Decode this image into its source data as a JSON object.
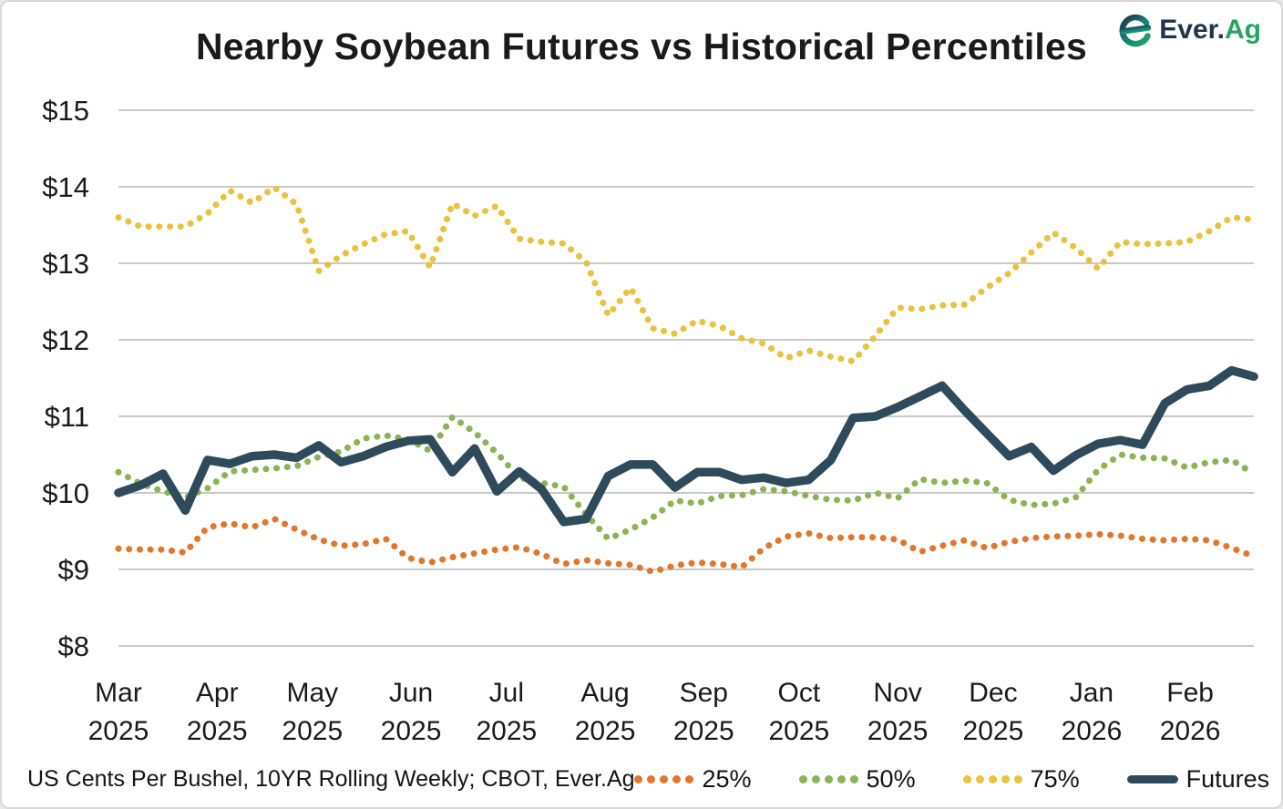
{
  "header": {
    "logo": {
      "ever": "Ever.",
      "ag": "Ag"
    }
  },
  "footer": {
    "note": "US Cents Per Bushel, 10YR Rolling Weekly; CBOT, Ever.Ag"
  },
  "colors": {
    "grid": "#c9c9c9",
    "axis_text": "#1a1a1a",
    "p25_orange": "#e2772c",
    "p50_green": "#8cb356",
    "p75_yellow": "#e9c23f",
    "futures_navy": "#2e4a5b",
    "logo_navy": "#22344a",
    "logo_green": "#27a45c",
    "logo_teal": "#12867b"
  },
  "chart_data": {
    "type": "line",
    "title": "Nearby Soybean Futures vs Historical Percentiles",
    "xlabel": "",
    "ylabel": "US Cents Per Bushel",
    "ylim": [
      8,
      15
    ],
    "grid": "horizontal",
    "legend_position": "bottom-right",
    "x_unit": "weekly (Mar 2025 - Feb 2026), 52 points per series",
    "y_ticks": [
      {
        "label": "$15",
        "value": 15
      },
      {
        "label": "$14",
        "value": 14
      },
      {
        "label": "$13",
        "value": 13
      },
      {
        "label": "$12",
        "value": 12
      },
      {
        "label": "$11",
        "value": 11
      },
      {
        "label": "$10",
        "value": 10
      },
      {
        "label": "$9",
        "value": 9
      },
      {
        "label": "$8",
        "value": 8
      }
    ],
    "x_labels": [
      {
        "month": "Mar",
        "year": "2025",
        "week": 0
      },
      {
        "month": "Apr",
        "year": "2025",
        "week": 4.43
      },
      {
        "month": "May",
        "year": "2025",
        "week": 8.71
      },
      {
        "month": "Jun",
        "year": "2025",
        "week": 13.14
      },
      {
        "month": "Jul",
        "year": "2025",
        "week": 17.43
      },
      {
        "month": "Aug",
        "year": "2025",
        "week": 21.86
      },
      {
        "month": "Sep",
        "year": "2025",
        "week": 26.29
      },
      {
        "month": "Oct",
        "year": "2025",
        "week": 30.57
      },
      {
        "month": "Nov",
        "year": "2025",
        "week": 35.0
      },
      {
        "month": "Dec",
        "year": "2025",
        "week": 39.29
      },
      {
        "month": "Jan",
        "year": "2026",
        "week": 43.71
      },
      {
        "month": "Feb",
        "year": "2026",
        "week": 48.14
      }
    ],
    "series": [
      {
        "name": "25%",
        "style": "dotted",
        "color": "#e2772c",
        "values": [
          9.27,
          9.26,
          9.26,
          9.22,
          9.55,
          9.6,
          9.55,
          9.66,
          9.52,
          9.39,
          9.31,
          9.33,
          9.4,
          9.15,
          9.09,
          9.16,
          9.21,
          9.26,
          9.29,
          9.2,
          9.07,
          9.12,
          9.08,
          9.06,
          8.97,
          9.05,
          9.09,
          9.07,
          9.03,
          9.28,
          9.43,
          9.47,
          9.41,
          9.42,
          9.42,
          9.39,
          9.23,
          9.31,
          9.38,
          9.28,
          9.36,
          9.41,
          9.43,
          9.44,
          9.46,
          9.44,
          9.4,
          9.38,
          9.4,
          9.38,
          9.28,
          9.17
        ]
      },
      {
        "name": "50%",
        "style": "dotted",
        "color": "#8cb356",
        "values": [
          10.27,
          10.12,
          10.02,
          9.94,
          10.06,
          10.28,
          10.3,
          10.32,
          10.35,
          10.47,
          10.54,
          10.71,
          10.75,
          10.7,
          10.55,
          10.99,
          10.79,
          10.52,
          10.2,
          10.13,
          10.08,
          9.72,
          9.4,
          9.52,
          9.68,
          9.9,
          9.86,
          9.96,
          9.97,
          10.05,
          10.02,
          9.96,
          9.91,
          9.9,
          10.0,
          9.93,
          10.18,
          10.13,
          10.16,
          10.13,
          9.91,
          9.84,
          9.86,
          9.94,
          10.3,
          10.5,
          10.46,
          10.45,
          10.33,
          10.4,
          10.43,
          10.25
        ]
      },
      {
        "name": "75%",
        "style": "dotted",
        "color": "#e9c23f",
        "values": [
          13.6,
          13.48,
          13.48,
          13.48,
          13.65,
          13.95,
          13.79,
          13.99,
          13.77,
          12.9,
          13.1,
          13.25,
          13.38,
          13.42,
          12.95,
          13.78,
          13.62,
          13.75,
          13.32,
          13.28,
          13.26,
          13.02,
          12.32,
          12.68,
          12.15,
          12.08,
          12.25,
          12.18,
          12.02,
          11.95,
          11.76,
          11.86,
          11.78,
          11.72,
          12.05,
          12.42,
          12.4,
          12.45,
          12.46,
          12.68,
          12.87,
          13.14,
          13.4,
          13.2,
          12.93,
          13.28,
          13.25,
          13.26,
          13.28,
          13.42,
          13.6,
          13.57
        ]
      },
      {
        "name": "Futures",
        "style": "solid",
        "color": "#2e4a5b",
        "values": [
          10.0,
          10.1,
          10.25,
          9.77,
          10.43,
          10.38,
          10.48,
          10.5,
          10.46,
          10.62,
          10.4,
          10.48,
          10.6,
          10.68,
          10.7,
          10.27,
          10.58,
          10.02,
          10.28,
          10.05,
          9.62,
          9.66,
          10.22,
          10.37,
          10.37,
          10.07,
          10.27,
          10.27,
          10.17,
          10.2,
          10.13,
          10.17,
          10.43,
          10.98,
          11.0,
          11.12,
          11.26,
          11.4,
          11.08,
          10.78,
          10.48,
          10.6,
          10.29,
          10.49,
          10.64,
          10.69,
          10.63,
          11.17,
          11.35,
          11.4,
          11.6,
          11.52
        ]
      }
    ]
  }
}
